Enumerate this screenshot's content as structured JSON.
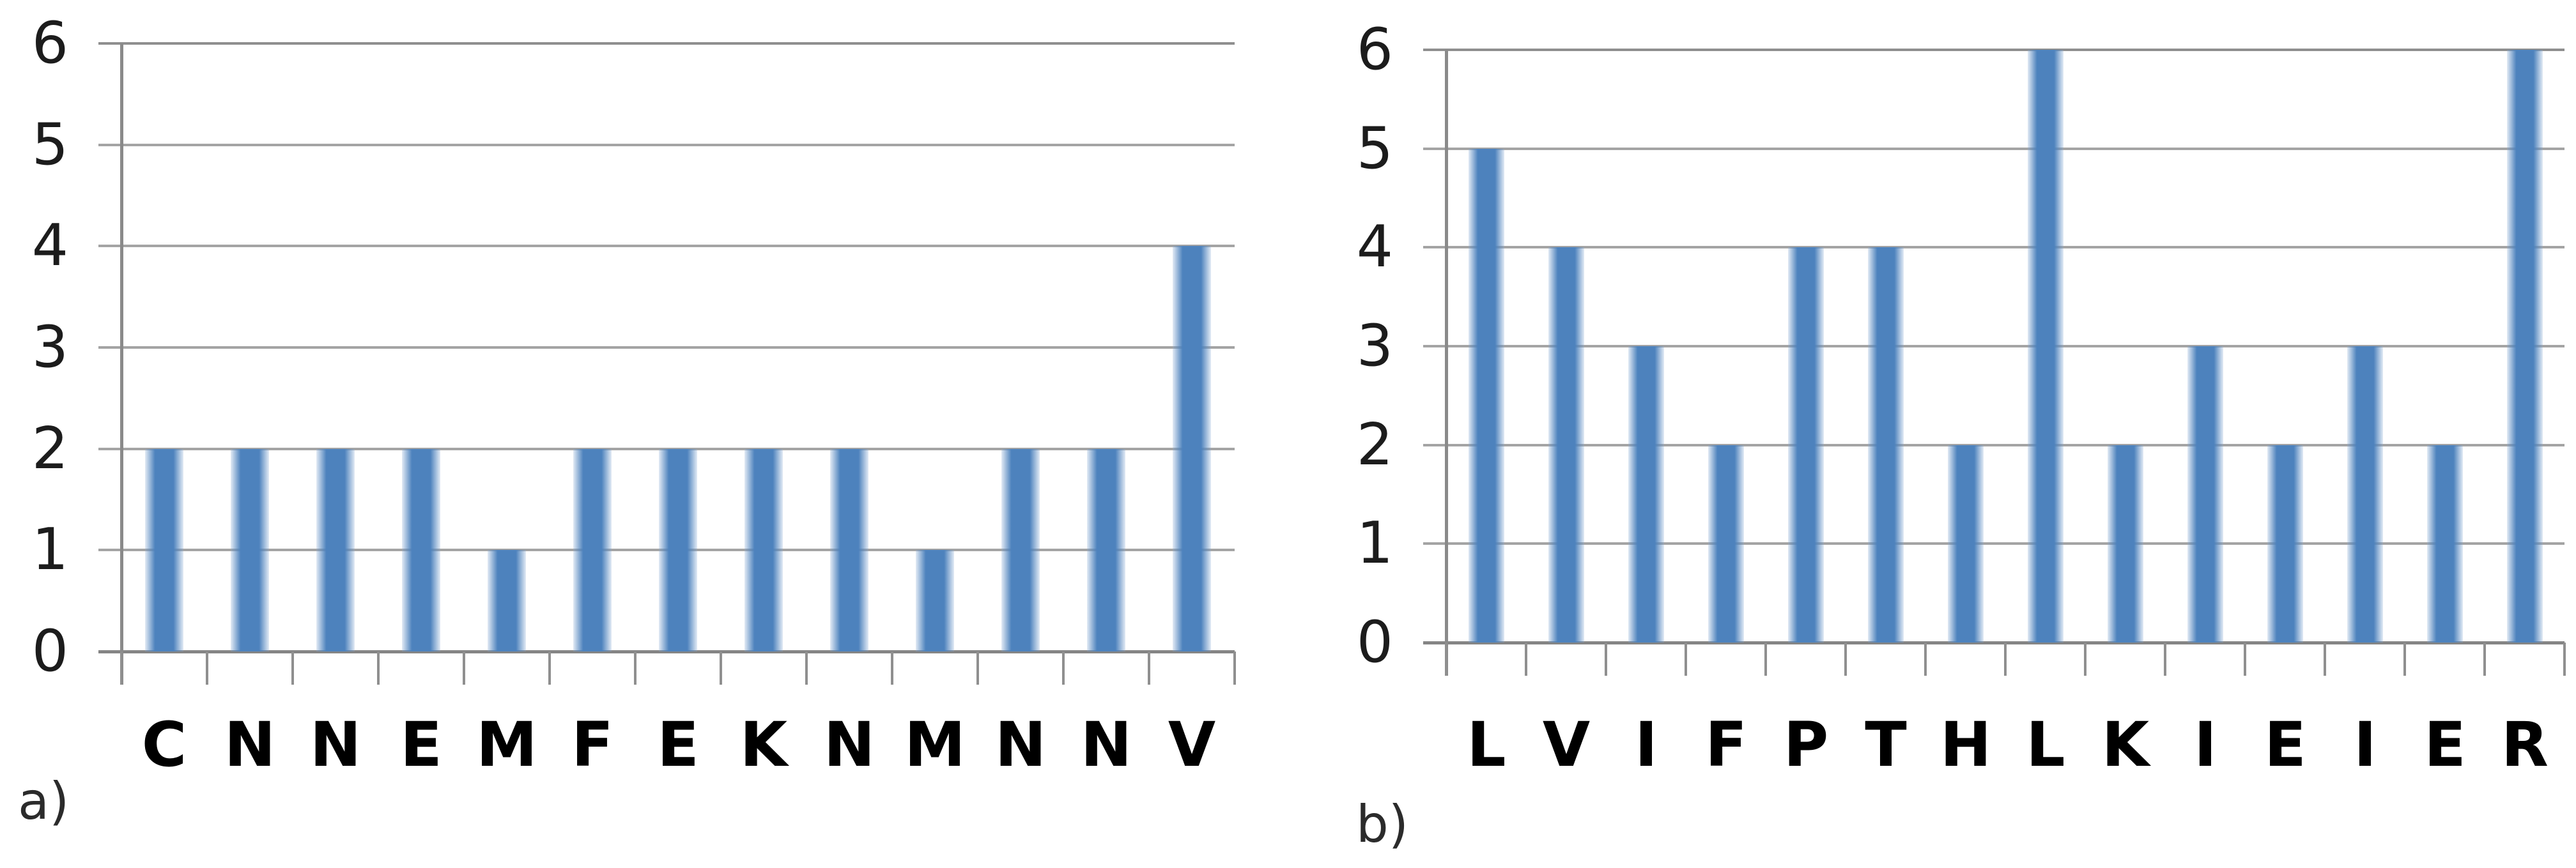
{
  "figure": {
    "background": "#ffffff",
    "bar_color": "#4d82bd",
    "gridline_color": "#a4a4a4",
    "axis_color": "#8a8a8a",
    "x_label_color": "#000000",
    "y_label_color": "#1c1c1c"
  },
  "chart_data": [
    {
      "id": "a",
      "type": "bar",
      "panel_label": "a)",
      "title": "",
      "xlabel": "",
      "ylabel": "",
      "categories": [
        "C",
        "N",
        "N",
        "E",
        "M",
        "F",
        "E",
        "K",
        "N",
        "M",
        "N",
        "N",
        "V"
      ],
      "values": [
        2,
        2,
        2,
        2,
        1,
        2,
        2,
        2,
        2,
        1,
        2,
        2,
        4
      ],
      "ylim": [
        0,
        6
      ],
      "yticks": [
        0,
        1,
        2,
        3,
        4,
        5,
        6
      ],
      "grid": true,
      "legend_position": "none"
    },
    {
      "id": "b",
      "type": "bar",
      "panel_label": "b)",
      "title": "",
      "xlabel": "",
      "ylabel": "",
      "categories": [
        "L",
        "V",
        "I",
        "F",
        "P",
        "T",
        "H",
        "L",
        "K",
        "I",
        "E",
        "I",
        "E",
        "R"
      ],
      "values": [
        5,
        4,
        3,
        2,
        4,
        4,
        2,
        6,
        2,
        3,
        2,
        3,
        2,
        6
      ],
      "ylim": [
        0,
        6
      ],
      "yticks": [
        0,
        1,
        2,
        3,
        4,
        5,
        6
      ],
      "grid": true,
      "legend_position": "none"
    }
  ]
}
